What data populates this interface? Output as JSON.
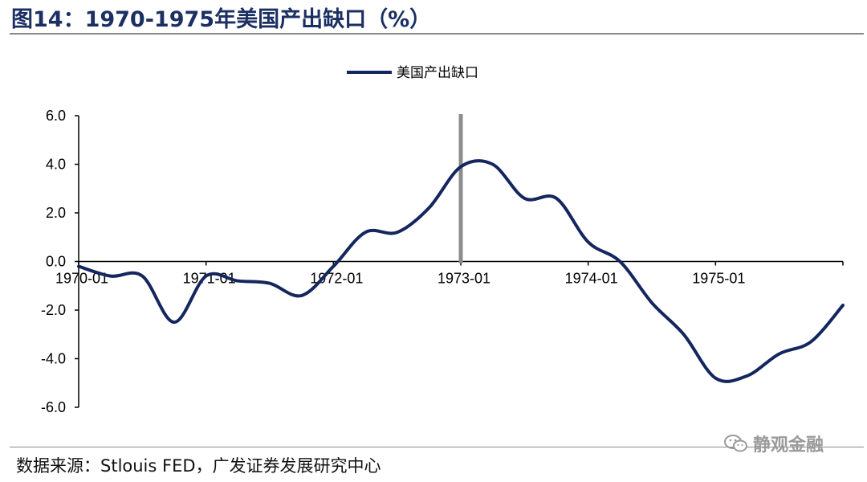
{
  "header": {
    "title": "图14：1970-1975年美国产出缺口（%）"
  },
  "footer": {
    "source": "数据来源：Stlouis FED，广发证券发展研究中心"
  },
  "watermark": {
    "text": "静观金融",
    "icon": "wechat-icon"
  },
  "colors": {
    "series": "#14265e",
    "marker": "#8c8c8c",
    "axis": "#000000"
  },
  "chart_data": {
    "type": "line",
    "title": "",
    "xlabel": "",
    "ylabel": "",
    "ylim": [
      -6,
      6
    ],
    "yticks": [
      "6.0",
      "4.0",
      "2.0",
      "0.0",
      "-2.0",
      "-4.0",
      "-6.0"
    ],
    "yticks_values": [
      6,
      4,
      2,
      0,
      -2,
      -4,
      -6
    ],
    "xticks": [
      "1970-01",
      "1971-01",
      "1972-01",
      "1973-01",
      "1974-01",
      "1975-01"
    ],
    "xticks_quarters": [
      0,
      4,
      8,
      12,
      16,
      20
    ],
    "x_range_quarters": [
      0,
      24
    ],
    "legend": {
      "position": "top-center",
      "entries": [
        "美国产出缺口"
      ]
    },
    "grid": false,
    "marker_line": {
      "x_quarter": 12,
      "label": ""
    },
    "series": [
      {
        "name": "美国产出缺口",
        "x": [
          "1970-Q1",
          "1970-Q2",
          "1970-Q3",
          "1970-Q4",
          "1971-Q1",
          "1971-Q2",
          "1971-Q3",
          "1971-Q4",
          "1972-Q1",
          "1972-Q2",
          "1972-Q3",
          "1972-Q4",
          "1973-Q1",
          "1973-Q2",
          "1973-Q3",
          "1973-Q4",
          "1974-Q1",
          "1974-Q2",
          "1974-Q3",
          "1974-Q4",
          "1975-Q1",
          "1975-Q2",
          "1975-Q3",
          "1975-Q4",
          "1976-Q1"
        ],
        "values": [
          -0.2,
          -0.6,
          -0.6,
          -2.5,
          -0.6,
          -0.8,
          -0.9,
          -1.4,
          -0.2,
          1.2,
          1.2,
          2.2,
          3.9,
          4.0,
          2.6,
          2.6,
          0.8,
          0.0,
          -1.7,
          -3.0,
          -4.8,
          -4.7,
          -3.8,
          -3.3,
          -1.8
        ]
      }
    ]
  }
}
